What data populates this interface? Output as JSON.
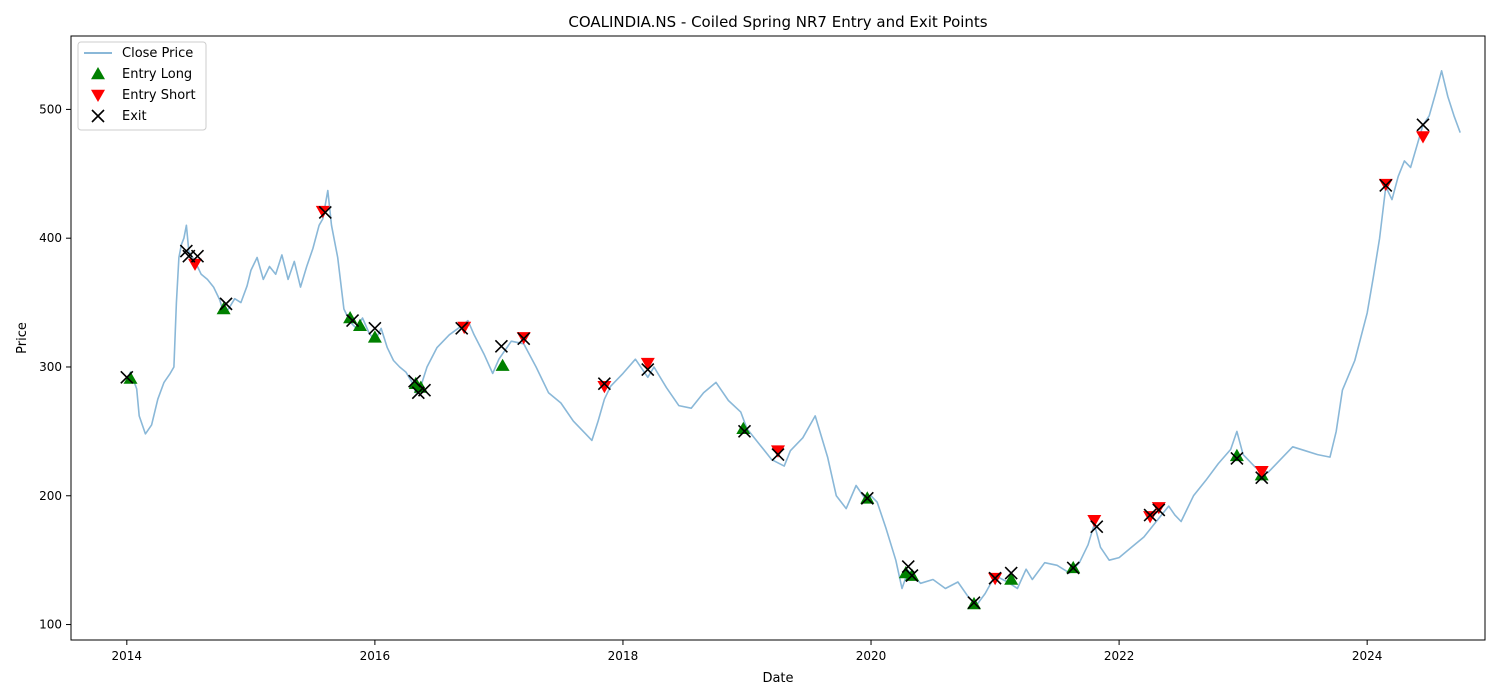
{
  "chart_data": {
    "type": "line",
    "title": "COALINDIA.NS - Coiled Spring NR7 Entry and Exit Points",
    "xlabel": "Date",
    "ylabel": "Price",
    "xlim": [
      2013.55,
      2024.95
    ],
    "ylim": [
      88,
      557
    ],
    "x_ticks": [
      2014,
      2016,
      2018,
      2020,
      2022,
      2024
    ],
    "y_ticks": [
      100,
      200,
      300,
      400,
      500
    ],
    "grid": false,
    "legend_position": "upper-left",
    "legend": [
      "Close Price",
      "Entry Long",
      "Entry Short",
      "Exit"
    ],
    "colors": {
      "close_price": "#8ab8d8",
      "entry_long": "#008000",
      "entry_short": "#ff0000",
      "exit": "#000000"
    },
    "series": [
      {
        "name": "Close Price",
        "points": [
          [
            2014.0,
            290
          ],
          [
            2014.03,
            296
          ],
          [
            2014.08,
            283
          ],
          [
            2014.1,
            262
          ],
          [
            2014.15,
            248
          ],
          [
            2014.2,
            255
          ],
          [
            2014.25,
            275
          ],
          [
            2014.3,
            288
          ],
          [
            2014.35,
            295
          ],
          [
            2014.38,
            300
          ],
          [
            2014.4,
            350
          ],
          [
            2014.42,
            385
          ],
          [
            2014.44,
            395
          ],
          [
            2014.46,
            400
          ],
          [
            2014.48,
            410
          ],
          [
            2014.5,
            390
          ],
          [
            2014.55,
            382
          ],
          [
            2014.6,
            372
          ],
          [
            2014.65,
            368
          ],
          [
            2014.7,
            362
          ],
          [
            2014.75,
            352
          ],
          [
            2014.78,
            342
          ],
          [
            2014.82,
            345
          ],
          [
            2014.87,
            353
          ],
          [
            2014.92,
            350
          ],
          [
            2014.97,
            363
          ],
          [
            2015.0,
            375
          ],
          [
            2015.05,
            385
          ],
          [
            2015.1,
            368
          ],
          [
            2015.15,
            378
          ],
          [
            2015.2,
            372
          ],
          [
            2015.25,
            387
          ],
          [
            2015.3,
            368
          ],
          [
            2015.35,
            382
          ],
          [
            2015.4,
            362
          ],
          [
            2015.45,
            378
          ],
          [
            2015.5,
            392
          ],
          [
            2015.55,
            410
          ],
          [
            2015.58,
            415
          ],
          [
            2015.62,
            437
          ],
          [
            2015.65,
            410
          ],
          [
            2015.7,
            385
          ],
          [
            2015.75,
            345
          ],
          [
            2015.8,
            335
          ],
          [
            2015.85,
            330
          ],
          [
            2015.9,
            338
          ],
          [
            2015.95,
            327
          ],
          [
            2016.0,
            320
          ],
          [
            2016.05,
            330
          ],
          [
            2016.1,
            315
          ],
          [
            2016.15,
            305
          ],
          [
            2016.2,
            300
          ],
          [
            2016.25,
            296
          ],
          [
            2016.3,
            288
          ],
          [
            2016.33,
            280
          ],
          [
            2016.37,
            285
          ],
          [
            2016.42,
            300
          ],
          [
            2016.5,
            315
          ],
          [
            2016.6,
            325
          ],
          [
            2016.7,
            332
          ],
          [
            2016.75,
            336
          ],
          [
            2016.8,
            325
          ],
          [
            2016.88,
            310
          ],
          [
            2016.95,
            295
          ],
          [
            2017.0,
            306
          ],
          [
            2017.05,
            313
          ],
          [
            2017.1,
            320
          ],
          [
            2017.2,
            318
          ],
          [
            2017.3,
            300
          ],
          [
            2017.4,
            280
          ],
          [
            2017.5,
            272
          ],
          [
            2017.6,
            258
          ],
          [
            2017.7,
            248
          ],
          [
            2017.75,
            243
          ],
          [
            2017.8,
            258
          ],
          [
            2017.85,
            275
          ],
          [
            2017.9,
            285
          ],
          [
            2018.0,
            295
          ],
          [
            2018.1,
            306
          ],
          [
            2018.2,
            292
          ],
          [
            2018.25,
            300
          ],
          [
            2018.35,
            284
          ],
          [
            2018.45,
            270
          ],
          [
            2018.55,
            268
          ],
          [
            2018.65,
            280
          ],
          [
            2018.75,
            288
          ],
          [
            2018.85,
            274
          ],
          [
            2018.95,
            265
          ],
          [
            2019.0,
            252
          ],
          [
            2019.1,
            240
          ],
          [
            2019.2,
            228
          ],
          [
            2019.3,
            223
          ],
          [
            2019.35,
            235
          ],
          [
            2019.45,
            245
          ],
          [
            2019.55,
            262
          ],
          [
            2019.6,
            246
          ],
          [
            2019.65,
            230
          ],
          [
            2019.72,
            200
          ],
          [
            2019.8,
            190
          ],
          [
            2019.88,
            208
          ],
          [
            2019.95,
            198
          ],
          [
            2020.0,
            200
          ],
          [
            2020.05,
            195
          ],
          [
            2020.12,
            175
          ],
          [
            2020.2,
            150
          ],
          [
            2020.25,
            128
          ],
          [
            2020.3,
            142
          ],
          [
            2020.4,
            132
          ],
          [
            2020.5,
            135
          ],
          [
            2020.6,
            128
          ],
          [
            2020.7,
            133
          ],
          [
            2020.78,
            122
          ],
          [
            2020.85,
            115
          ],
          [
            2020.92,
            124
          ],
          [
            2021.0,
            138
          ],
          [
            2021.1,
            133
          ],
          [
            2021.18,
            128
          ],
          [
            2021.25,
            143
          ],
          [
            2021.3,
            135
          ],
          [
            2021.4,
            148
          ],
          [
            2021.5,
            146
          ],
          [
            2021.6,
            140
          ],
          [
            2021.68,
            148
          ],
          [
            2021.75,
            162
          ],
          [
            2021.8,
            178
          ],
          [
            2021.85,
            160
          ],
          [
            2021.92,
            150
          ],
          [
            2022.0,
            152
          ],
          [
            2022.1,
            160
          ],
          [
            2022.2,
            168
          ],
          [
            2022.3,
            180
          ],
          [
            2022.4,
            192
          ],
          [
            2022.45,
            185
          ],
          [
            2022.5,
            180
          ],
          [
            2022.6,
            200
          ],
          [
            2022.7,
            212
          ],
          [
            2022.8,
            225
          ],
          [
            2022.9,
            236
          ],
          [
            2022.95,
            250
          ],
          [
            2023.0,
            232
          ],
          [
            2023.1,
            222
          ],
          [
            2023.2,
            218
          ],
          [
            2023.3,
            228
          ],
          [
            2023.4,
            238
          ],
          [
            2023.5,
            235
          ],
          [
            2023.6,
            232
          ],
          [
            2023.7,
            230
          ],
          [
            2023.75,
            250
          ],
          [
            2023.8,
            282
          ],
          [
            2023.9,
            305
          ],
          [
            2024.0,
            342
          ],
          [
            2024.05,
            370
          ],
          [
            2024.1,
            400
          ],
          [
            2024.15,
            440
          ],
          [
            2024.2,
            430
          ],
          [
            2024.25,
            448
          ],
          [
            2024.3,
            460
          ],
          [
            2024.35,
            455
          ],
          [
            2024.45,
            488
          ],
          [
            2024.5,
            495
          ],
          [
            2024.55,
            512
          ],
          [
            2024.6,
            530
          ],
          [
            2024.65,
            510
          ],
          [
            2024.7,
            495
          ],
          [
            2024.75,
            482
          ]
        ]
      },
      {
        "name": "Entry Long",
        "points": [
          [
            2014.03,
            291
          ],
          [
            2014.78,
            345
          ],
          [
            2015.8,
            338
          ],
          [
            2015.88,
            332
          ],
          [
            2016.0,
            323
          ],
          [
            2016.33,
            287
          ],
          [
            2016.37,
            284
          ],
          [
            2017.03,
            301
          ],
          [
            2018.97,
            252
          ],
          [
            2019.97,
            198
          ],
          [
            2020.28,
            140
          ],
          [
            2020.33,
            138
          ],
          [
            2020.83,
            116
          ],
          [
            2021.13,
            135
          ],
          [
            2021.63,
            144
          ],
          [
            2022.95,
            231
          ],
          [
            2023.15,
            216
          ]
        ]
      },
      {
        "name": "Entry Short",
        "points": [
          [
            2014.55,
            380
          ],
          [
            2015.58,
            421
          ],
          [
            2016.72,
            331
          ],
          [
            2017.2,
            323
          ],
          [
            2017.85,
            285
          ],
          [
            2018.2,
            303
          ],
          [
            2019.25,
            235
          ],
          [
            2021.0,
            136
          ],
          [
            2021.8,
            181
          ],
          [
            2022.25,
            184
          ],
          [
            2022.32,
            191
          ],
          [
            2023.15,
            219
          ],
          [
            2024.15,
            442
          ],
          [
            2024.45,
            479
          ]
        ]
      },
      {
        "name": "Exit",
        "points": [
          [
            2014.0,
            292
          ],
          [
            2014.48,
            390
          ],
          [
            2014.5,
            386
          ],
          [
            2014.57,
            386
          ],
          [
            2014.8,
            349
          ],
          [
            2015.6,
            420
          ],
          [
            2015.82,
            336
          ],
          [
            2016.0,
            330
          ],
          [
            2016.32,
            289
          ],
          [
            2016.35,
            280
          ],
          [
            2016.4,
            282
          ],
          [
            2016.7,
            330
          ],
          [
            2017.02,
            316
          ],
          [
            2017.2,
            322
          ],
          [
            2017.85,
            287
          ],
          [
            2018.2,
            298
          ],
          [
            2018.98,
            250
          ],
          [
            2019.25,
            232
          ],
          [
            2019.97,
            198
          ],
          [
            2020.3,
            145
          ],
          [
            2020.33,
            138
          ],
          [
            2020.83,
            117
          ],
          [
            2021.0,
            136
          ],
          [
            2021.13,
            140
          ],
          [
            2021.63,
            144
          ],
          [
            2021.82,
            176
          ],
          [
            2022.25,
            185
          ],
          [
            2022.32,
            189
          ],
          [
            2022.95,
            229
          ],
          [
            2023.15,
            214
          ],
          [
            2024.15,
            441
          ],
          [
            2024.45,
            488
          ]
        ]
      }
    ]
  }
}
